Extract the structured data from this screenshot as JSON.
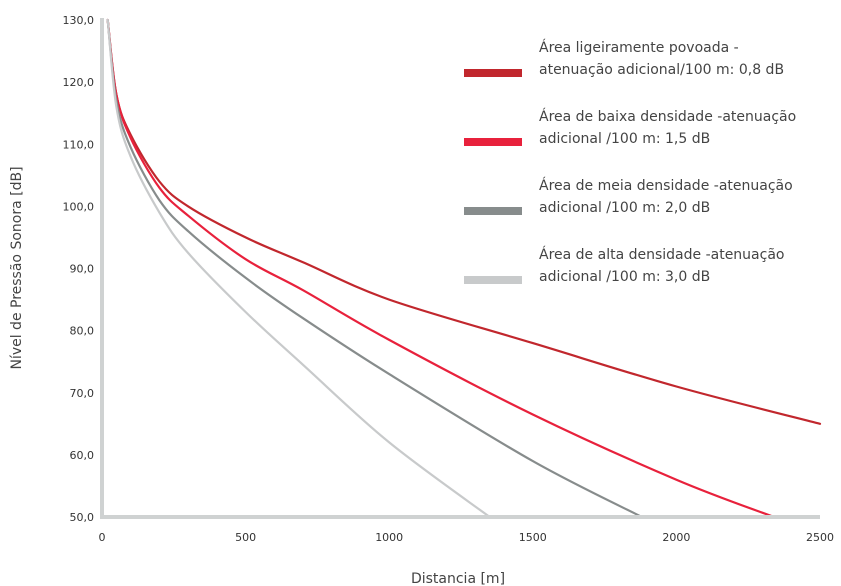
{
  "chart_data": {
    "type": "line",
    "xlabel": "Distancia [m]",
    "ylabel": "Nível de Pressão Sonora [dB]",
    "xlim": [
      0,
      2500
    ],
    "ylim": [
      50,
      130
    ],
    "xticks": [
      0,
      500,
      1000,
      1500,
      2000,
      2500
    ],
    "xtick_labels": [
      "0",
      "500",
      "1000",
      "1500",
      "2000",
      "2500"
    ],
    "yticks": [
      50,
      60,
      70,
      80,
      90,
      100,
      110,
      120,
      130
    ],
    "ytick_labels": [
      "50,0",
      "60,0",
      "70,0",
      "80,0",
      "90,0",
      "100,0",
      "110,0",
      "120,0",
      "130,0"
    ],
    "grid": false,
    "legend_position": "top-right",
    "series": [
      {
        "name_lines": [
          "Área ligeiramente povoada -",
          "atenuação adicional/100 m: 0,8 dB"
        ],
        "color": "#c1272d",
        "x": [
          20,
          50,
          100,
          200,
          300,
          500,
          700,
          1000,
          1500,
          2000,
          2500
        ],
        "y": [
          130,
          118,
          111.5,
          104,
          100,
          95,
          91,
          85,
          78,
          71,
          65
        ]
      },
      {
        "name_lines": [
          "Área de baixa densidade -atenuação",
          "adicional /100 m: 1,5 dB"
        ],
        "color": "#e8213c",
        "x": [
          20,
          50,
          100,
          200,
          300,
          500,
          700,
          1000,
          1500,
          2000,
          2340
        ],
        "y": [
          130,
          118,
          111,
          103,
          98.5,
          91.5,
          86.5,
          78.5,
          66.5,
          56,
          50
        ]
      },
      {
        "name_lines": [
          "Área de meia densidade -atenuação",
          "adicional /100 m: 2,0 dB"
        ],
        "color": "#878c8c",
        "x": [
          20,
          50,
          100,
          200,
          300,
          500,
          700,
          1000,
          1500,
          1880
        ],
        "y": [
          130,
          117,
          109.5,
          101,
          96,
          88.5,
          82,
          73,
          59,
          50
        ]
      },
      {
        "name_lines": [
          "Área de alta densidade -atenuação",
          "adicional /100 m: 3,0 dB"
        ],
        "color": "#c8cacb",
        "x": [
          20,
          50,
          100,
          200,
          300,
          500,
          700,
          1000,
          1350
        ],
        "y": [
          130,
          116,
          108,
          99,
          92.5,
          83,
          74.5,
          62,
          50
        ]
      }
    ]
  }
}
